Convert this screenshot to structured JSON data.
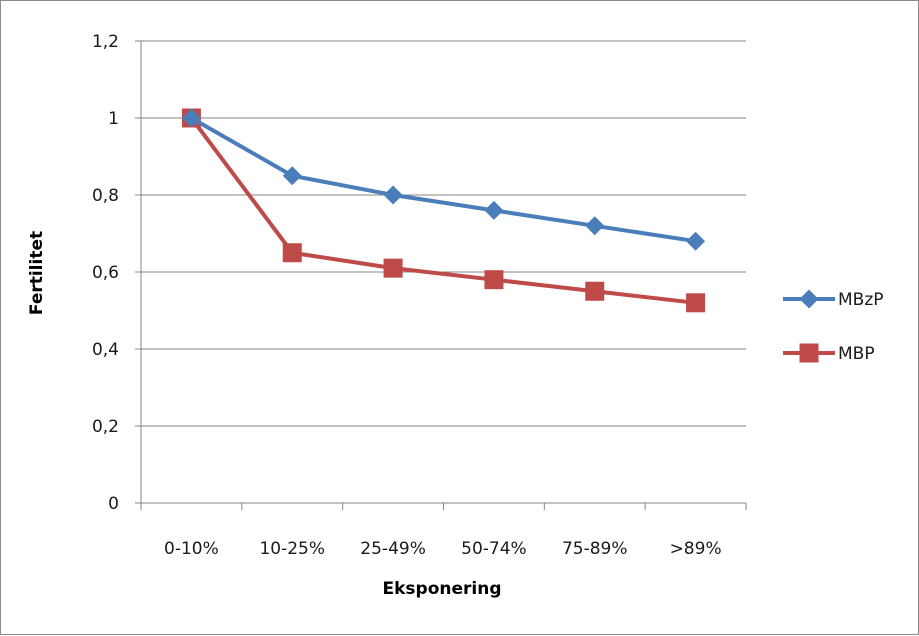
{
  "chart_data": {
    "type": "line",
    "xlabel": "Eksponering",
    "ylabel": "Fertilitet",
    "categories": [
      "0-10%",
      "10-25%",
      "25-49%",
      "50-74%",
      "75-89%",
      ">89%"
    ],
    "ylim": [
      0,
      1.2
    ],
    "yticks": [
      {
        "value": 0,
        "label": "0"
      },
      {
        "value": 0.2,
        "label": "0,2"
      },
      {
        "value": 0.4,
        "label": "0,4"
      },
      {
        "value": 0.6,
        "label": "0,6"
      },
      {
        "value": 0.8,
        "label": "0,8"
      },
      {
        "value": 1,
        "label": "1"
      },
      {
        "value": 1.2,
        "label": "1,2"
      }
    ],
    "grid": true,
    "legend_position": "right",
    "series": [
      {
        "name": "MBzP",
        "color": "#4a7ebb",
        "marker": "diamond",
        "values": [
          1.0,
          0.85,
          0.8,
          0.76,
          0.72,
          0.68
        ]
      },
      {
        "name": "MBP",
        "color": "#be4b48",
        "marker": "square",
        "values": [
          1.0,
          0.65,
          0.61,
          0.58,
          0.55,
          0.52
        ]
      }
    ]
  }
}
